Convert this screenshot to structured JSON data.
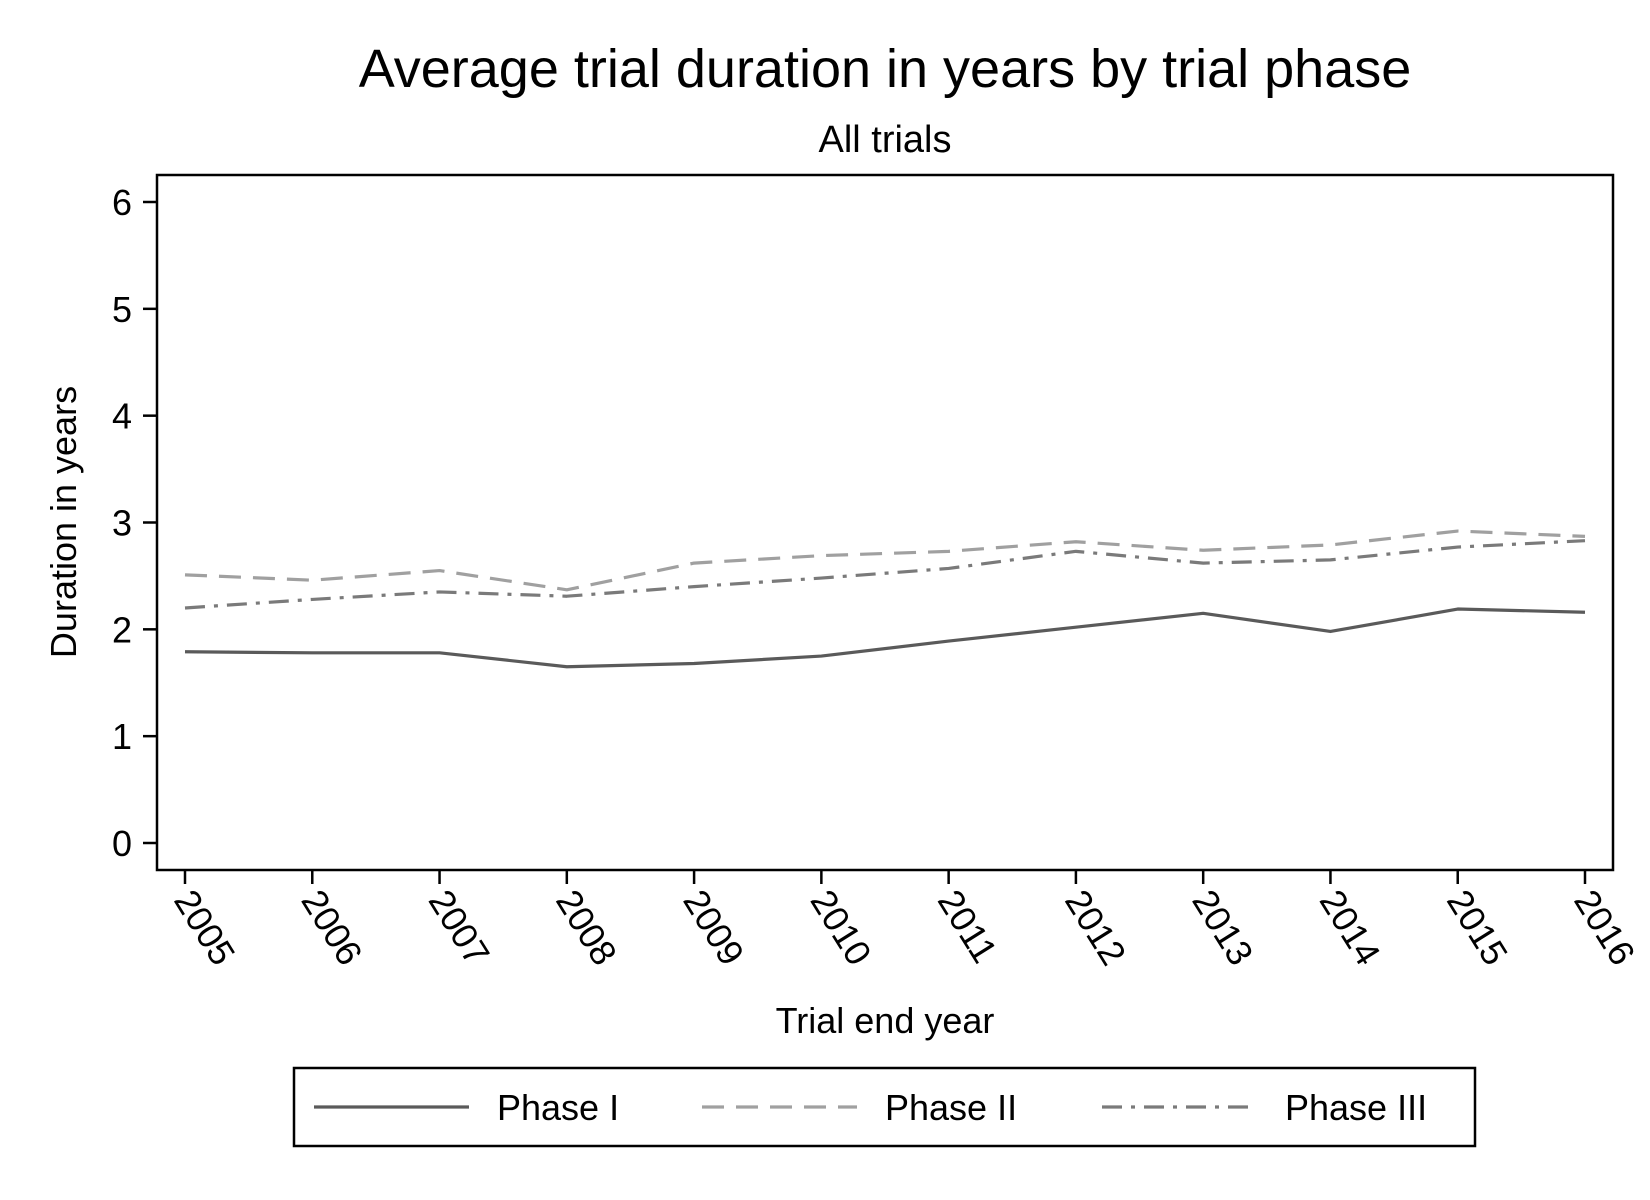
{
  "chart_data": {
    "type": "line",
    "title": "Average trial duration in years by trial phase",
    "subtitle": "All trials",
    "xlabel": "Trial end year",
    "ylabel": "Duration in years",
    "x": [
      2005,
      2006,
      2007,
      2008,
      2009,
      2010,
      2011,
      2012,
      2013,
      2014,
      2015,
      2016
    ],
    "ylim": [
      0,
      6
    ],
    "yticks": [
      0,
      1,
      2,
      3,
      4,
      5,
      6
    ],
    "grid": false,
    "legend_position": "bottom",
    "series": [
      {
        "name": "Phase I",
        "style": "solid",
        "color": "#5a5a5a",
        "values": [
          1.79,
          1.78,
          1.78,
          1.65,
          1.68,
          1.75,
          1.89,
          2.02,
          2.15,
          1.98,
          2.19,
          2.16
        ]
      },
      {
        "name": "Phase II",
        "style": "dashed",
        "color": "#a0a0a0",
        "values": [
          2.51,
          2.46,
          2.55,
          2.37,
          2.62,
          2.69,
          2.73,
          2.82,
          2.74,
          2.79,
          2.92,
          2.87
        ]
      },
      {
        "name": "Phase III",
        "style": "dashdot",
        "color": "#7a7a7a",
        "values": [
          2.2,
          2.28,
          2.35,
          2.31,
          2.4,
          2.48,
          2.57,
          2.73,
          2.62,
          2.65,
          2.77,
          2.83
        ]
      }
    ]
  }
}
